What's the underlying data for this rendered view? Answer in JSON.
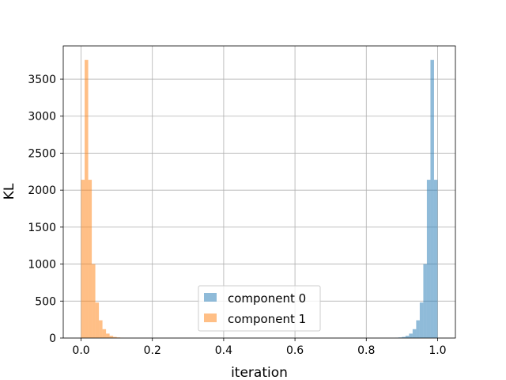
{
  "chart_data": {
    "type": "bar",
    "subtype": "histogram",
    "title": "",
    "xlabel": "iteration",
    "ylabel": "KL",
    "xlim": [
      -0.05,
      1.05
    ],
    "ylim": [
      0,
      3950
    ],
    "xticks": [
      0.0,
      0.2,
      0.4,
      0.6,
      0.8,
      1.0
    ],
    "xtick_labels": [
      "0.0",
      "0.2",
      "0.4",
      "0.6",
      "0.8",
      "1.0"
    ],
    "yticks": [
      0,
      500,
      1000,
      1500,
      2000,
      2500,
      3000,
      3500
    ],
    "ytick_labels": [
      "0",
      "500",
      "1000",
      "1500",
      "2000",
      "2500",
      "3000",
      "3500"
    ],
    "grid": true,
    "legend_position": "lower-center",
    "series": [
      {
        "name": "component 0",
        "color": "#1f77b4",
        "alpha": 0.5,
        "bin_edges": [
          0.88,
          0.89,
          0.9,
          0.91,
          0.92,
          0.93,
          0.94,
          0.95,
          0.96,
          0.97,
          0.98,
          0.99,
          1.0
        ],
        "counts": [
          3,
          8,
          15,
          30,
          60,
          120,
          240,
          480,
          1000,
          2140,
          3760,
          2140
        ]
      },
      {
        "name": "component 1",
        "color": "#ff7f0e",
        "alpha": 0.5,
        "bin_edges": [
          0.0,
          0.01,
          0.02,
          0.03,
          0.04,
          0.05,
          0.06,
          0.07,
          0.08,
          0.09,
          0.1,
          0.11,
          0.12
        ],
        "counts": [
          2140,
          3760,
          2140,
          1000,
          480,
          240,
          120,
          60,
          30,
          15,
          8,
          3
        ]
      }
    ]
  }
}
